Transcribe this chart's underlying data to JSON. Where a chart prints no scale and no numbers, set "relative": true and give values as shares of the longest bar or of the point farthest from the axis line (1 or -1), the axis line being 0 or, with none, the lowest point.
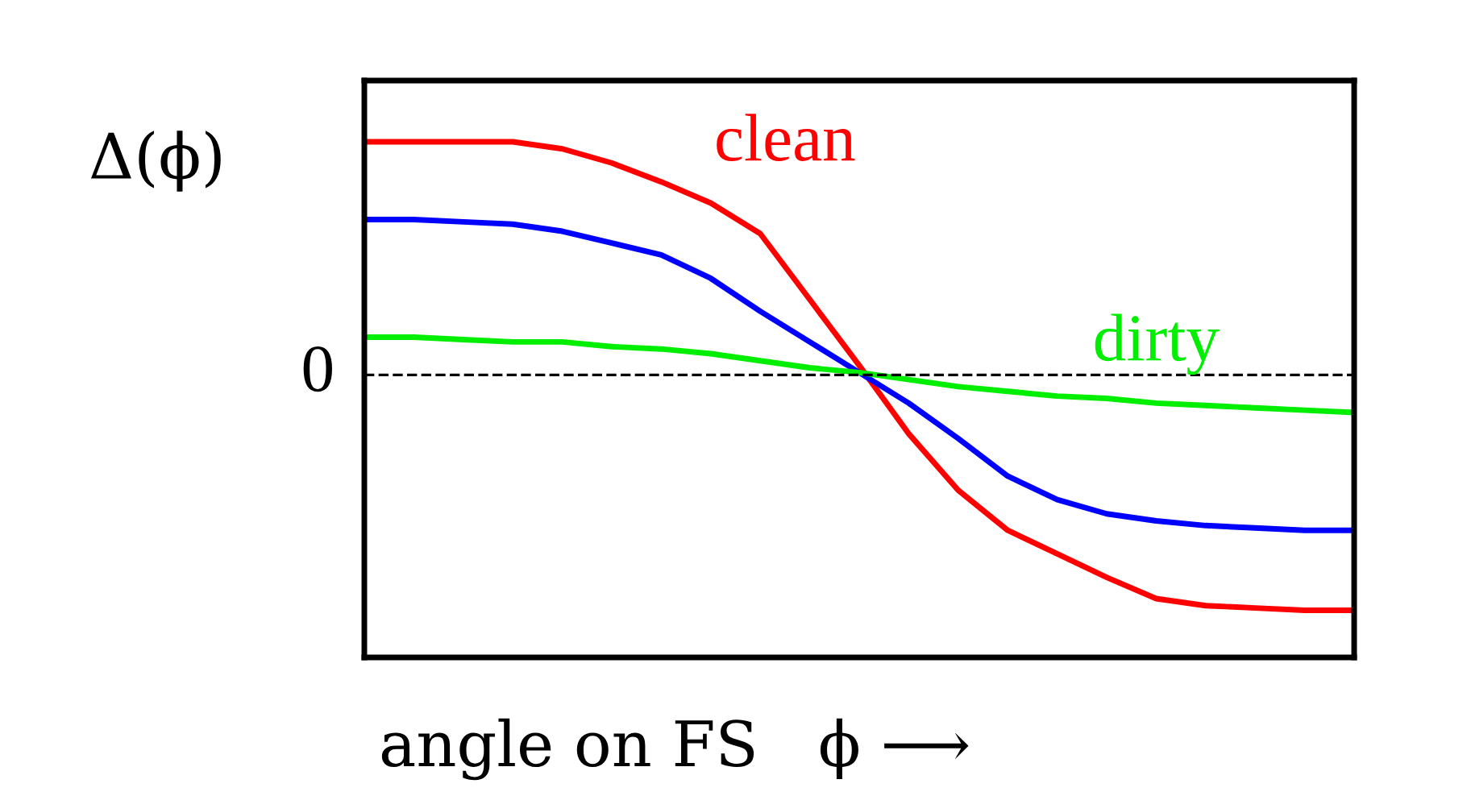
{
  "chart_data": {
    "type": "line",
    "relative": true,
    "ylabel": "Δ(ϕ)",
    "xlabel": "angle on FS   ϕ ⟶",
    "legend": false,
    "marker": "none",
    "line_style": "solid",
    "categories": [
      null,
      null,
      null,
      null,
      null,
      null,
      null,
      null,
      null,
      null,
      null,
      null,
      null,
      null,
      null,
      null,
      null,
      null,
      null,
      null,
      null
    ],
    "series": [
      {
        "name": "clean",
        "color": "#ff0000",
        "values": [
          0.99,
          0.99,
          0.99,
          0.99,
          0.96,
          0.9,
          0.82,
          0.73,
          0.6,
          0.32,
          0.04,
          -0.25,
          -0.49,
          -0.66,
          -0.76,
          -0.86,
          -0.95,
          -0.98,
          -0.99,
          -1,
          -1
        ]
      },
      {
        "color": "#0000ff",
        "values": [
          0.66,
          0.66,
          0.65,
          0.64,
          0.61,
          0.56,
          0.51,
          0.41,
          0.27,
          0.14,
          0.01,
          -0.12,
          -0.27,
          -0.43,
          -0.53,
          -0.59,
          -0.62,
          -0.64,
          -0.65,
          -0.66,
          -0.66
        ]
      },
      {
        "name": "dirty",
        "color": "#00ee00",
        "values": [
          0.16,
          0.16,
          0.15,
          0.14,
          0.14,
          0.12,
          0.11,
          0.09,
          0.06,
          0.03,
          0.01,
          -0.02,
          -0.05,
          -0.07,
          -0.09,
          -0.1,
          -0.12,
          -0.13,
          -0.14,
          -0.15,
          -0.16
        ]
      }
    ],
    "ref_lines": [
      {
        "axis": "y",
        "value": 0,
        "label": "0",
        "color": "#000000",
        "line_style": "dashed"
      }
    ]
  }
}
